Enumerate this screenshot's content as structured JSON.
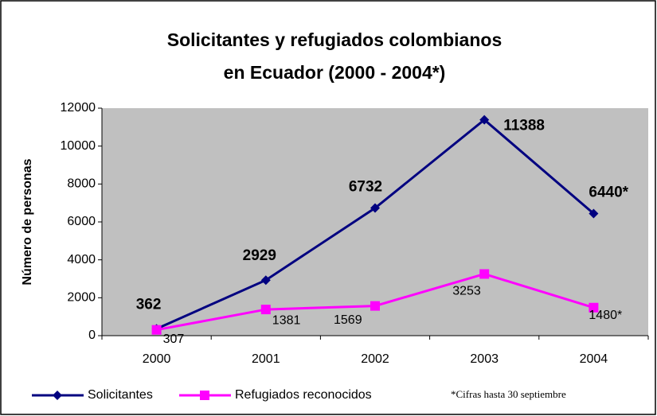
{
  "chart_data": {
    "type": "line",
    "title": [
      "Solicitantes y refugiados colombianos",
      "en Ecuador (2000 - 2004*)"
    ],
    "y_label": "Número de personas",
    "categories": [
      "2000",
      "2001",
      "2002",
      "2003",
      "2004"
    ],
    "series": [
      {
        "name": "Solicitantes",
        "color": "#000080",
        "marker": "diamond",
        "values": [
          362,
          2929,
          6732,
          11388,
          6440
        ],
        "value_labels": [
          "362",
          "2929",
          "6732",
          "11388",
          "6440*"
        ]
      },
      {
        "name": "Refugiados reconocidos",
        "color": "#ff00ff",
        "marker": "square",
        "values": [
          307,
          1381,
          1569,
          3253,
          1480
        ],
        "value_labels": [
          "307",
          "1381",
          "1569",
          "3253",
          "1480*"
        ]
      }
    ],
    "ylim": [
      0,
      12000
    ],
    "yticks": [
      0,
      2000,
      4000,
      6000,
      8000,
      10000,
      12000
    ],
    "annotation": "*Cifras hasta 30 septiembre",
    "plot_background": "#c0c0c0"
  }
}
